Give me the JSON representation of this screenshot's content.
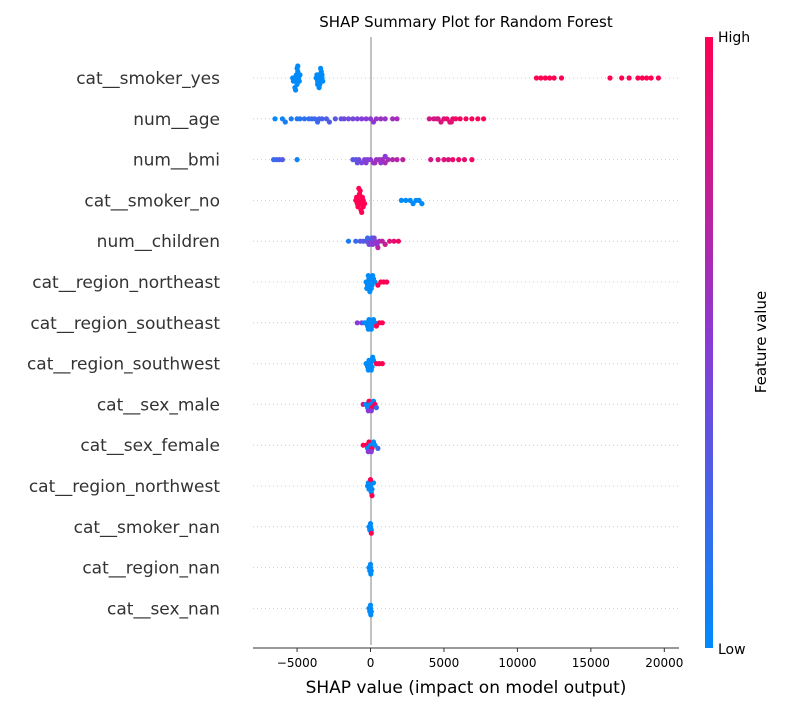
{
  "chart_data": {
    "type": "scatter",
    "title": "SHAP Summary Plot for Random Forest",
    "xlabel": "SHAP value (impact on model output)",
    "xlim": [
      -8000,
      21000
    ],
    "xticks": [
      -5000,
      0,
      5000,
      10000,
      15000,
      20000
    ],
    "colorbar": {
      "title": "Feature value",
      "high_label": "High",
      "low_label": "Low",
      "low_color": "#008bfb",
      "high_color": "#ff0052"
    },
    "features": [
      {
        "name": "cat__smoker_yes",
        "points": [
          [
            -5300,
            0
          ],
          [
            -5200,
            0
          ],
          [
            -5100,
            0
          ],
          [
            -5050,
            0
          ],
          [
            -5000,
            0
          ],
          [
            -4950,
            0
          ],
          [
            -4900,
            0
          ],
          [
            -5250,
            0
          ],
          [
            -4850,
            0
          ],
          [
            -5150,
            0
          ],
          [
            -5000,
            0
          ],
          [
            -4800,
            0
          ],
          [
            -5100,
            0
          ],
          [
            -4950,
            0
          ],
          [
            -3700,
            0
          ],
          [
            -3600,
            0
          ],
          [
            -3500,
            0
          ],
          [
            -3400,
            0
          ],
          [
            -3300,
            0
          ],
          [
            -3250,
            0
          ],
          [
            -3550,
            0
          ],
          [
            -3450,
            0
          ],
          [
            -3350,
            0
          ],
          [
            -3650,
            0
          ],
          [
            -3500,
            0
          ],
          [
            -3400,
            0
          ],
          [
            -3300,
            0
          ],
          [
            -3600,
            0
          ],
          [
            11300,
            1
          ],
          [
            11600,
            1
          ],
          [
            11900,
            1
          ],
          [
            12200,
            1
          ],
          [
            12500,
            1
          ],
          [
            13000,
            1
          ],
          [
            16300,
            1
          ],
          [
            17100,
            1
          ],
          [
            17600,
            1
          ],
          [
            18200,
            1
          ],
          [
            18500,
            1
          ],
          [
            18800,
            1
          ],
          [
            19100,
            1
          ],
          [
            19600,
            1
          ]
        ]
      },
      {
        "name": "num__age",
        "points": [
          [
            -6500,
            0.02
          ],
          [
            -6000,
            0.05
          ],
          [
            -5800,
            0.08
          ],
          [
            -5400,
            0.1
          ],
          [
            -5000,
            0.12
          ],
          [
            -4800,
            0.12
          ],
          [
            -4500,
            0.15
          ],
          [
            -4200,
            0.18
          ],
          [
            -4000,
            0.18
          ],
          [
            -3800,
            0.22
          ],
          [
            -3600,
            0.2
          ],
          [
            -3500,
            0.25
          ],
          [
            -3300,
            0.25
          ],
          [
            -3000,
            0.28
          ],
          [
            -2800,
            0.3
          ],
          [
            -2400,
            0.32
          ],
          [
            -2000,
            0.35
          ],
          [
            -1800,
            0.4
          ],
          [
            -1500,
            0.4
          ],
          [
            -1200,
            0.42
          ],
          [
            -900,
            0.45
          ],
          [
            -600,
            0.48
          ],
          [
            -300,
            0.5
          ],
          [
            0,
            0.5
          ],
          [
            200,
            0.52
          ],
          [
            400,
            0.55
          ],
          [
            700,
            0.58
          ],
          [
            1000,
            0.55
          ],
          [
            1500,
            0.6
          ],
          [
            1800,
            0.62
          ],
          [
            4000,
            0.8
          ],
          [
            4300,
            0.82
          ],
          [
            4600,
            0.85
          ],
          [
            4800,
            0.85
          ],
          [
            5000,
            0.88
          ],
          [
            5200,
            0.9
          ],
          [
            5400,
            0.9
          ],
          [
            5600,
            0.92
          ],
          [
            5800,
            0.93
          ],
          [
            6100,
            0.95
          ],
          [
            6500,
            0.95
          ],
          [
            6900,
            0.96
          ],
          [
            7300,
            0.97
          ],
          [
            7700,
            0.98
          ],
          [
            4500,
            0.8
          ],
          [
            5500,
            0.86
          ]
        ]
      },
      {
        "name": "num__bmi",
        "points": [
          [
            -6600,
            0.2
          ],
          [
            -6400,
            0.25
          ],
          [
            -6200,
            0.25
          ],
          [
            -6000,
            0.3
          ],
          [
            -5000,
            0.05
          ],
          [
            -1200,
            0.3
          ],
          [
            -1000,
            0.35
          ],
          [
            -800,
            0.4
          ],
          [
            -600,
            0.42
          ],
          [
            -400,
            0.45
          ],
          [
            -200,
            0.48
          ],
          [
            0,
            0.5
          ],
          [
            200,
            0.52
          ],
          [
            400,
            0.55
          ],
          [
            600,
            0.58
          ],
          [
            800,
            0.6
          ],
          [
            1000,
            0.62
          ],
          [
            1200,
            0.62
          ],
          [
            1500,
            0.65
          ],
          [
            1800,
            0.68
          ],
          [
            2200,
            0.7
          ],
          [
            -900,
            0.38
          ],
          [
            -300,
            0.5
          ],
          [
            300,
            0.6
          ],
          [
            700,
            0.55
          ],
          [
            1000,
            0.5
          ],
          [
            4100,
            0.8
          ],
          [
            4600,
            0.82
          ],
          [
            5000,
            0.85
          ],
          [
            5300,
            0.85
          ],
          [
            5600,
            0.9
          ],
          [
            6000,
            0.92
          ],
          [
            6400,
            0.88
          ],
          [
            6900,
            0.95
          ]
        ]
      },
      {
        "name": "cat__smoker_no",
        "points": [
          [
            -1000,
            1
          ],
          [
            -900,
            1
          ],
          [
            -800,
            1
          ],
          [
            -700,
            1
          ],
          [
            -600,
            1
          ],
          [
            -500,
            1
          ],
          [
            -400,
            1
          ],
          [
            -850,
            1
          ],
          [
            -750,
            1
          ],
          [
            -650,
            1
          ],
          [
            -550,
            1
          ],
          [
            -950,
            1
          ],
          [
            -700,
            1
          ],
          [
            -600,
            1
          ],
          [
            -800,
            1
          ],
          [
            -500,
            1
          ],
          [
            2100,
            0
          ],
          [
            2400,
            0
          ],
          [
            2700,
            0
          ],
          [
            2900,
            0
          ],
          [
            3100,
            0
          ],
          [
            3300,
            0
          ],
          [
            3500,
            0
          ]
        ]
      },
      {
        "name": "num__children",
        "points": [
          [
            -1500,
            0.1
          ],
          [
            -1000,
            0.2
          ],
          [
            -700,
            0.3
          ],
          [
            -500,
            0.3
          ],
          [
            -300,
            0.35
          ],
          [
            -100,
            0.4
          ],
          [
            0,
            0.45
          ],
          [
            150,
            0.5
          ],
          [
            300,
            0.55
          ],
          [
            450,
            0.5
          ],
          [
            600,
            0.6
          ],
          [
            800,
            0.7
          ],
          [
            1000,
            0.75
          ],
          [
            1300,
            0.85
          ],
          [
            1600,
            0.9
          ],
          [
            1900,
            0.95
          ],
          [
            -200,
            0.2
          ],
          [
            100,
            0.3
          ],
          [
            250,
            0.4
          ],
          [
            500,
            0.7
          ]
        ]
      },
      {
        "name": "cat__region_northeast",
        "points": [
          [
            -300,
            0
          ],
          [
            -200,
            0
          ],
          [
            -100,
            0
          ],
          [
            0,
            0
          ],
          [
            100,
            0
          ],
          [
            200,
            0
          ],
          [
            -250,
            0
          ],
          [
            -150,
            0
          ],
          [
            50,
            0
          ],
          [
            150,
            0
          ],
          [
            -50,
            0
          ],
          [
            300,
            0
          ],
          [
            500,
            1
          ],
          [
            700,
            1
          ],
          [
            900,
            1
          ],
          [
            1100,
            1
          ]
        ]
      },
      {
        "name": "cat__region_southeast",
        "points": [
          [
            -900,
            0.5
          ],
          [
            -600,
            0.4
          ],
          [
            -400,
            0
          ],
          [
            -300,
            0
          ],
          [
            -200,
            0
          ],
          [
            -100,
            0
          ],
          [
            0,
            0
          ],
          [
            100,
            0
          ],
          [
            200,
            0
          ],
          [
            300,
            0
          ],
          [
            -150,
            0
          ],
          [
            50,
            0
          ],
          [
            400,
            1
          ],
          [
            600,
            1
          ],
          [
            800,
            1
          ]
        ]
      },
      {
        "name": "cat__region_southwest",
        "points": [
          [
            -300,
            0
          ],
          [
            -200,
            0
          ],
          [
            -100,
            0
          ],
          [
            0,
            0
          ],
          [
            100,
            0
          ],
          [
            200,
            0
          ],
          [
            -150,
            0
          ],
          [
            50,
            0
          ],
          [
            150,
            0
          ],
          [
            400,
            1
          ],
          [
            600,
            1
          ],
          [
            800,
            1
          ]
        ]
      },
      {
        "name": "cat__sex_male",
        "points": [
          [
            -500,
            0.8
          ],
          [
            -300,
            0
          ],
          [
            -200,
            0
          ],
          [
            -100,
            1
          ],
          [
            0,
            0
          ],
          [
            100,
            1
          ],
          [
            200,
            0
          ],
          [
            300,
            1
          ],
          [
            400,
            0.2
          ],
          [
            -150,
            0.5
          ],
          [
            50,
            0.5
          ]
        ]
      },
      {
        "name": "cat__sex_female",
        "points": [
          [
            -500,
            1
          ],
          [
            -300,
            1
          ],
          [
            -200,
            0
          ],
          [
            -100,
            1
          ],
          [
            0,
            0
          ],
          [
            100,
            1
          ],
          [
            200,
            0
          ],
          [
            300,
            0
          ],
          [
            500,
            0.2
          ],
          [
            -150,
            0.5
          ],
          [
            50,
            0.5
          ]
        ]
      },
      {
        "name": "cat__region_northwest",
        "points": [
          [
            -200,
            0
          ],
          [
            -100,
            0
          ],
          [
            0,
            0
          ],
          [
            100,
            0
          ],
          [
            200,
            0
          ],
          [
            -150,
            0
          ],
          [
            50,
            0
          ],
          [
            0,
            1
          ],
          [
            100,
            1
          ]
        ]
      },
      {
        "name": "cat__smoker_nan",
        "points": [
          [
            -100,
            0
          ],
          [
            0,
            0
          ],
          [
            50,
            0
          ],
          [
            -50,
            0
          ],
          [
            0,
            0
          ],
          [
            50,
            1
          ]
        ]
      },
      {
        "name": "cat__region_nan",
        "points": [
          [
            -100,
            0
          ],
          [
            0,
            0
          ],
          [
            50,
            0
          ],
          [
            -50,
            0
          ],
          [
            0,
            0
          ],
          [
            20,
            0
          ]
        ]
      },
      {
        "name": "cat__sex_nan",
        "points": [
          [
            -100,
            0
          ],
          [
            0,
            0
          ],
          [
            50,
            0
          ],
          [
            -50,
            0
          ],
          [
            0,
            0
          ],
          [
            20,
            0
          ]
        ]
      }
    ]
  }
}
